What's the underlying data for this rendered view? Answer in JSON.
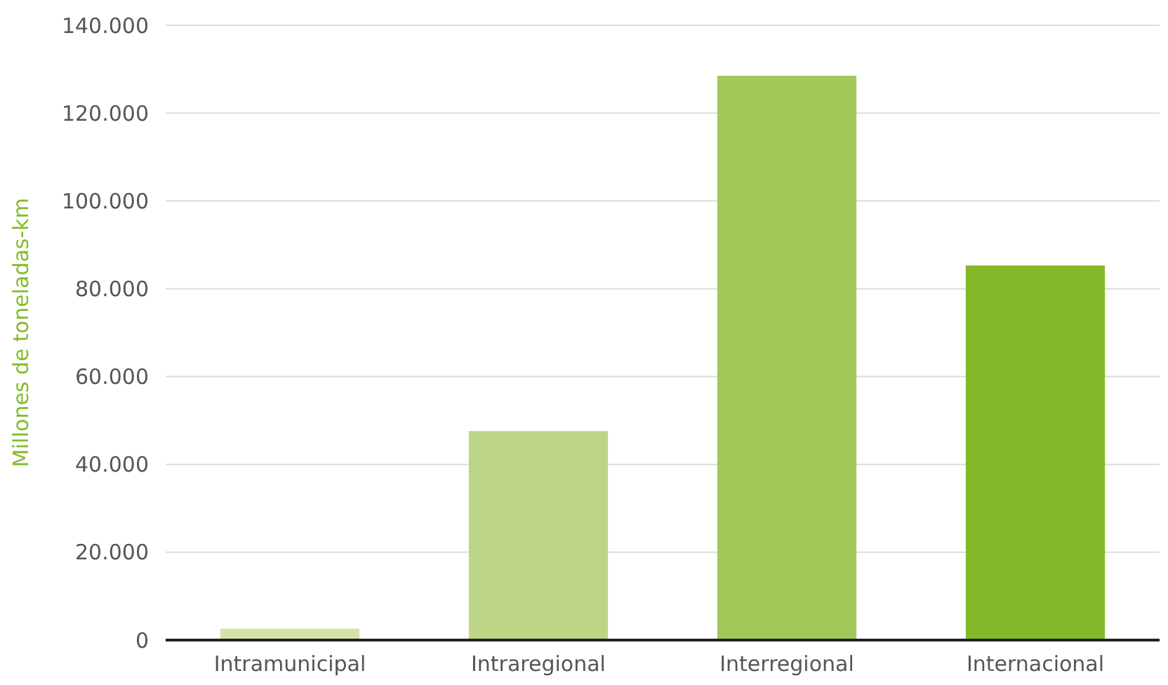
{
  "chart_data": {
    "type": "bar",
    "ylabel": "Millones de toneladas-km",
    "categories": [
      "Intramunicipal",
      "Intraregional",
      "Interregional",
      "Internacional"
    ],
    "values": [
      2600,
      47600,
      128500,
      85300
    ],
    "colors": [
      "#d3e4a9",
      "#bdd686",
      "#a3c85a",
      "#83b828"
    ],
    "ylim": [
      0,
      140000
    ],
    "yticks": [
      {
        "value": 0,
        "label": "0"
      },
      {
        "value": 20000,
        "label": "20.000"
      },
      {
        "value": 40000,
        "label": "40.000"
      },
      {
        "value": 60000,
        "label": "60.000"
      },
      {
        "value": 80000,
        "label": "80.000"
      },
      {
        "value": 100000,
        "label": "100.000"
      },
      {
        "value": 120000,
        "label": "120.000"
      },
      {
        "value": 140000,
        "label": "140.000"
      }
    ],
    "grid": "y"
  }
}
